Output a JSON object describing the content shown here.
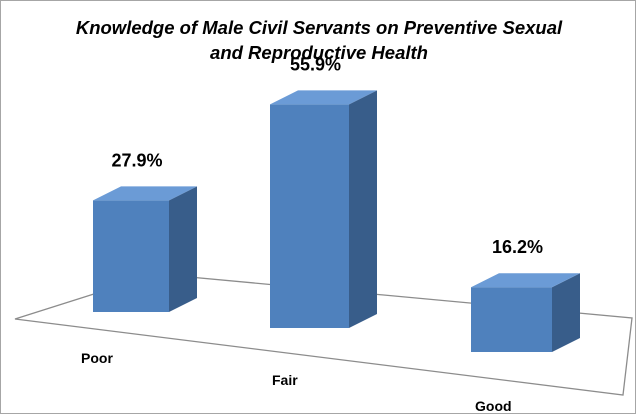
{
  "chart_data": {
    "type": "bar",
    "title_line1": "Knowledge of Male Civil Servants on Preventive Sexual",
    "title_line2": "and Reproductive Health",
    "categories": [
      "Poor",
      "Fair",
      "Good"
    ],
    "values": [
      27.9,
      55.9,
      16.2
    ],
    "data_labels": [
      "27.9%",
      "55.9%",
      "16.2%"
    ],
    "xlabel": "",
    "ylabel": "",
    "ylim": [
      0,
      60
    ],
    "grid": false,
    "legend": "none",
    "style": "3d-column",
    "colors": {
      "bar_front": "#4f81bd",
      "bar_top": "#6b9bd6",
      "bar_side": "#385d8a",
      "floor_edge": "#8c8c8c"
    }
  }
}
